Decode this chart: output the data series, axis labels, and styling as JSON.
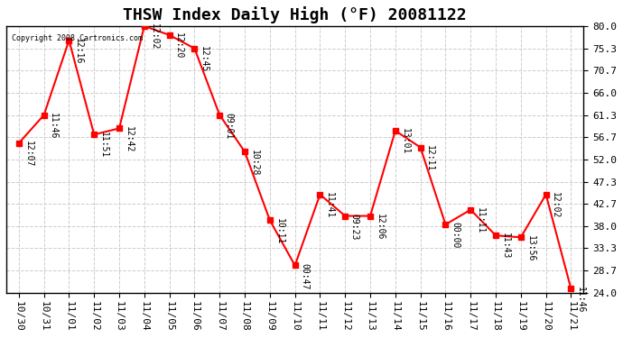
{
  "title": "THSW Index Daily High (°F) 20081122",
  "copyright": "Copyright 2008 Cartronics.com",
  "background_color": "#ffffff",
  "line_color": "#ff0000",
  "marker_color": "#ff0000",
  "grid_color": "#cccccc",
  "x_ticks": [
    "10/30",
    "10/31",
    "11/01",
    "11/02",
    "11/03",
    "11/04",
    "11/05",
    "11/06",
    "11/07",
    "11/08",
    "11/09",
    "11/10",
    "11/11",
    "11/12",
    "11/13",
    "11/14",
    "11/15",
    "11/16",
    "11/17",
    "11/18",
    "11/19",
    "11/20",
    "11/21"
  ],
  "y_values": [
    55.4,
    61.3,
    77.0,
    57.2,
    58.5,
    80.0,
    78.1,
    75.3,
    61.3,
    53.6,
    39.2,
    29.7,
    44.6,
    40.1,
    40.1,
    58.0,
    54.5,
    38.3,
    41.4,
    36.0,
    35.6,
    44.6,
    24.8
  ],
  "annotations": [
    "12:07",
    "11:46",
    "12:16",
    "11:51",
    "12:42",
    "12:02",
    "12:20",
    "12:45",
    "09:01",
    "10:28",
    "10:11",
    "00:47",
    "11:41",
    "09:23",
    "12:06",
    "13:01",
    "12:11",
    "00:00",
    "11:11",
    "11:43",
    "13:56",
    "12:02",
    "11:46"
  ],
  "ylim": [
    24.0,
    80.0
  ],
  "yticks": [
    24.0,
    28.7,
    33.3,
    38.0,
    42.7,
    47.3,
    52.0,
    56.7,
    61.3,
    66.0,
    70.7,
    75.3,
    80.0
  ],
  "title_fontsize": 13,
  "tick_fontsize": 8,
  "annotation_fontsize": 7
}
